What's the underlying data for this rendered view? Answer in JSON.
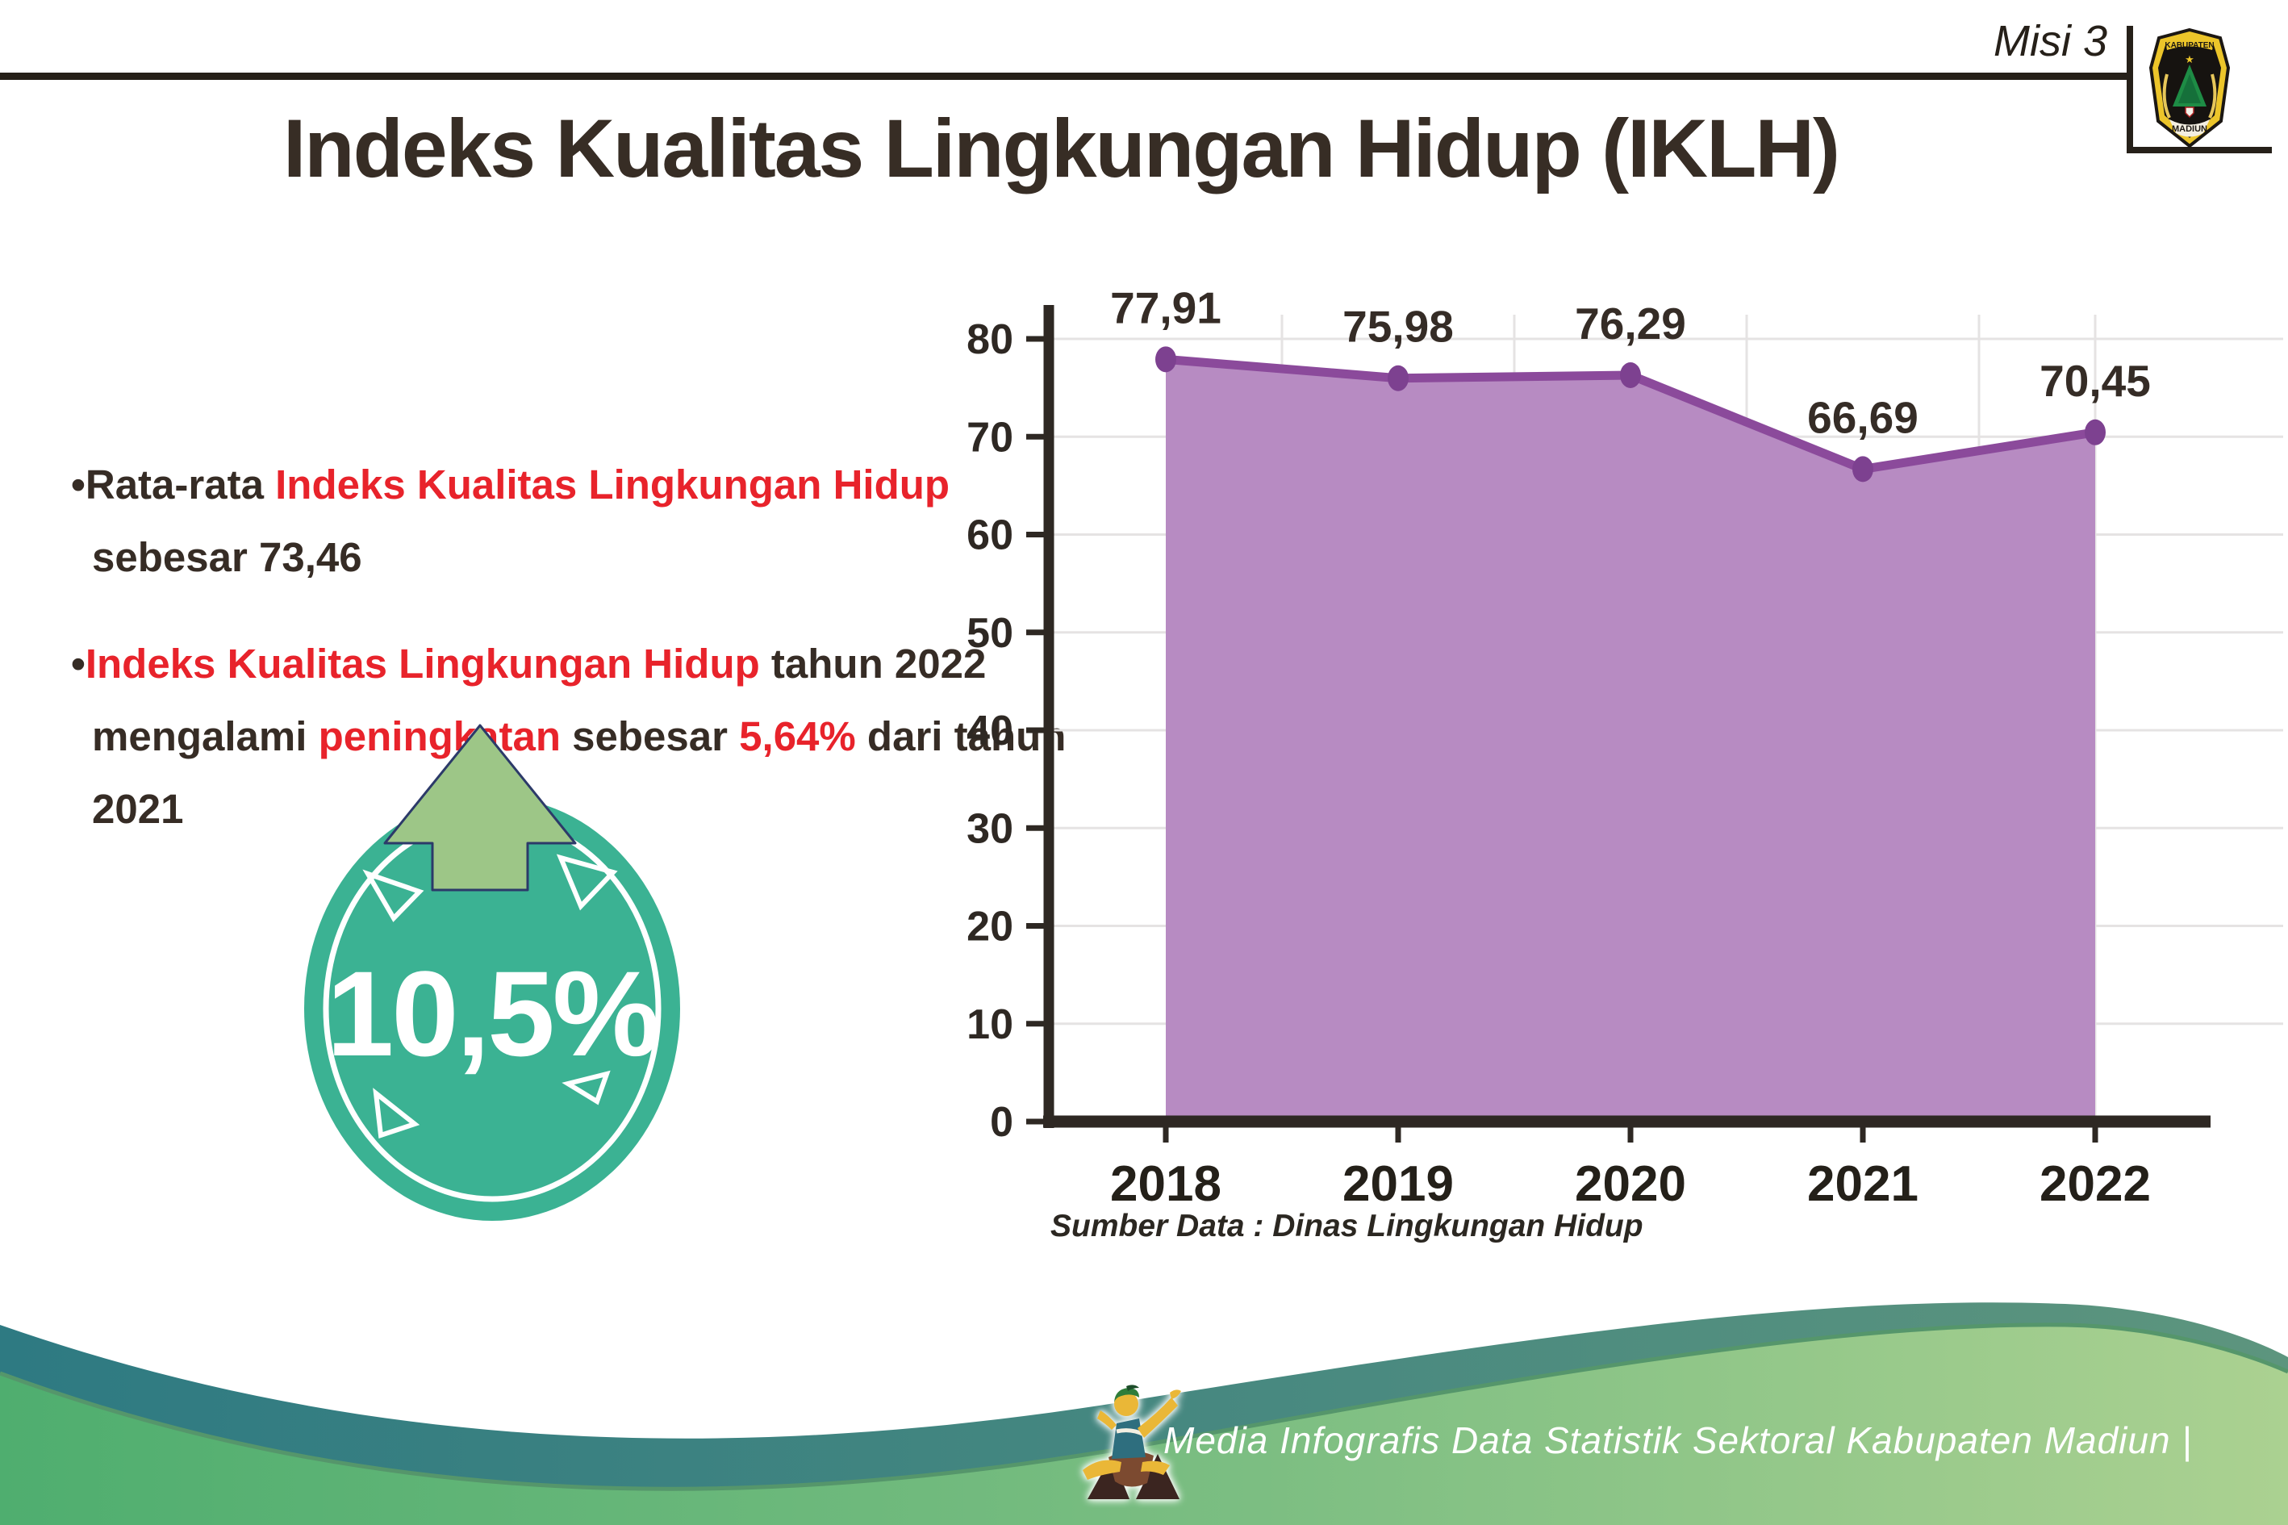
{
  "header": {
    "misi_label": "Misi 3",
    "logo": {
      "top_text": "KABUPATEN",
      "bottom_text": "MADIUN"
    }
  },
  "title": "Indeks Kualitas Lingkungan Hidup (IKLH)",
  "bullet_char": "•",
  "bullets": [
    {
      "segments": [
        {
          "text": "Rata-rata ",
          "color": "dark"
        },
        {
          "text": "Indeks Kualitas Lingkungan Hidup",
          "color": "red"
        },
        {
          "text": " sebesar 73,46",
          "color": "dark"
        }
      ]
    },
    {
      "segments": [
        {
          "text": "Indeks Kualitas Lingkungan Hidup",
          "color": "red"
        },
        {
          "text": " tahun 2022 mengalami ",
          "color": "dark"
        },
        {
          "text": "peningkatan",
          "color": "red"
        },
        {
          "text": " sebesar ",
          "color": "dark"
        },
        {
          "text": "5,64%",
          "color": "red"
        },
        {
          "text": " dari tahun 2021",
          "color": "dark"
        }
      ]
    }
  ],
  "badge": {
    "value": "10,5%",
    "direction": "up"
  },
  "chart_data": {
    "type": "area",
    "categories": [
      "2018",
      "2019",
      "2020",
      "2021",
      "2022"
    ],
    "series": [
      {
        "name": "IKLH",
        "values": [
          77.91,
          75.98,
          76.29,
          66.69,
          70.45
        ]
      }
    ],
    "value_labels": [
      "77,91",
      "75,98",
      "76,29",
      "66,69",
      "70,45"
    ],
    "ylim": [
      0,
      80
    ],
    "ytick_step": 10,
    "grid": true,
    "legend": "none",
    "title": "",
    "xlabel": "",
    "ylabel": ""
  },
  "source_note": "Sumber Data : Dinas Lingkungan Hidup",
  "footer": {
    "caption": "Media Infografis Data Statistik Sektoral Kabupaten Madiun |"
  },
  "colors": {
    "text_dark": "#362c25",
    "accent_red": "#e8232b",
    "badge_teal": "#3bb293",
    "arrow_green": "#9dc687",
    "arrow_outline": "#2c3a69",
    "chart_fill": "#b78bc2",
    "chart_line": "#8b4a9b",
    "chart_marker": "#7d4190",
    "axis_dark": "#2e2823",
    "gridline": "#e5e3e3",
    "footer_teal_start": "#2e7a82",
    "footer_teal_end": "#5d957e",
    "footer_green_start": "#4fae6f",
    "footer_green_end": "#abd191"
  }
}
